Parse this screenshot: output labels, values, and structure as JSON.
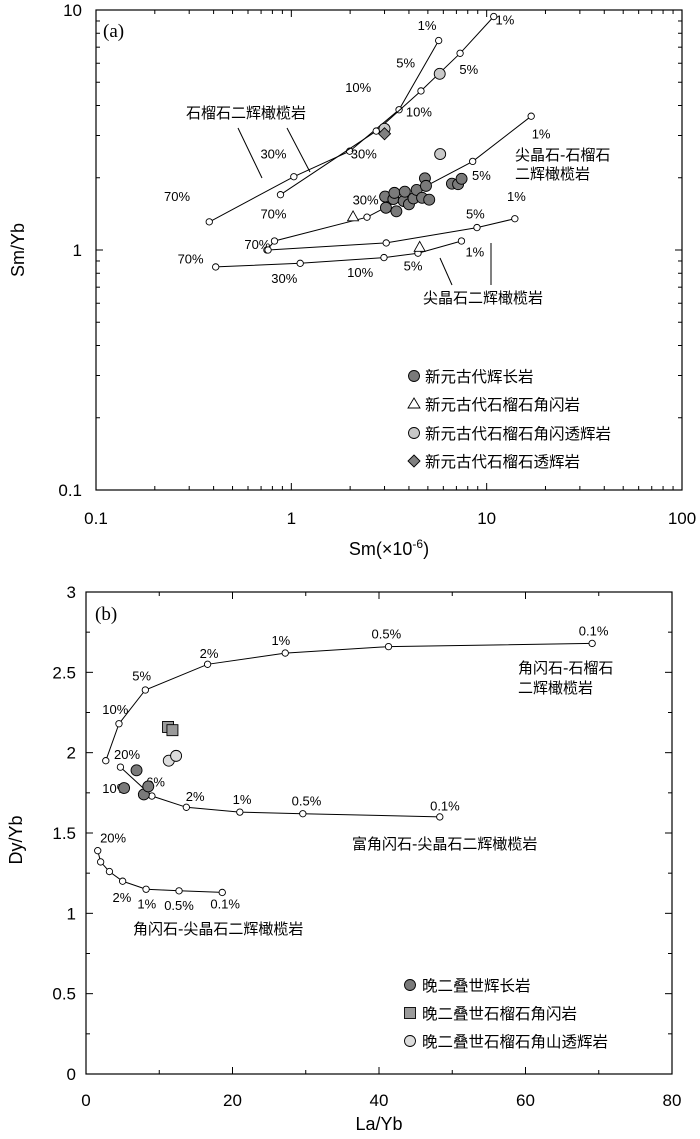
{
  "chart_data": [
    {
      "type": "scatter",
      "panel": "(a)",
      "xscale": "log",
      "yscale": "log",
      "xlim": [
        0.1,
        100
      ],
      "ylim": [
        0.1,
        10
      ],
      "xlabel": "Sm(×10⁻⁶)",
      "ylabel": "Sm/Yb",
      "xticks": [
        {
          "v": 0.1,
          "t": "0.1"
        },
        {
          "v": 1,
          "t": "1"
        },
        {
          "v": 10,
          "t": "10"
        },
        {
          "v": 100,
          "t": "100"
        }
      ],
      "yticks": [
        {
          "v": 0.1,
          "t": "0.1"
        },
        {
          "v": 1,
          "t": "1"
        },
        {
          "v": 10,
          "t": "10"
        }
      ],
      "curves": [
        {
          "name": "石榴石二辉橄榄岩 A",
          "points": [
            [
              0.38,
              1.31
            ],
            [
              1.03,
              2.02
            ],
            [
              1.99,
              2.58
            ],
            [
              3.56,
              3.84
            ],
            [
              5.68,
              7.46
            ]
          ],
          "labels": [
            {
              "t": "70%",
              "x": 0.26,
              "y": 1.6
            },
            {
              "t": "30%",
              "x": 0.81,
              "y": 2.4
            },
            {
              "t": "10%",
              "x": 2.2,
              "y": 4.55
            },
            {
              "t": "5%",
              "x": 3.85,
              "y": 5.75
            },
            {
              "t": "1%",
              "x": 4.95,
              "y": 8.25
            }
          ]
        },
        {
          "name": "石榴石二辉橄榄岩 B",
          "points": [
            [
              0.88,
              1.7
            ],
            [
              2.72,
              3.13
            ],
            [
              4.61,
              4.6
            ],
            [
              7.31,
              6.6
            ],
            [
              10.87,
              9.39
            ]
          ],
          "labels": [
            {
              "t": "70%",
              "x": 0.81,
              "y": 1.35
            },
            {
              "t": "30%",
              "x": 2.35,
              "y": 2.4
            },
            {
              "t": "10%",
              "x": 4.5,
              "y": 3.6
            },
            {
              "t": "5%",
              "x": 8.1,
              "y": 5.4
            },
            {
              "t": "1%",
              "x": 12.4,
              "y": 8.7
            }
          ]
        },
        {
          "name": "尖晶石-石榴石二辉橄榄岩",
          "points": [
            [
              0.75,
              1.0
            ],
            [
              0.82,
              1.09
            ],
            [
              2.44,
              1.37
            ],
            [
              8.48,
              2.34
            ],
            [
              16.9,
              3.61
            ]
          ],
          "labels": [
            {
              "t": "70%",
              "x": 0.67,
              "y": 1.01
            },
            {
              "t": "30%",
              "x": 2.4,
              "y": 1.55
            },
            {
              "t": "5%",
              "x": 9.4,
              "y": 1.96
            },
            {
              "t": "1%",
              "x": 19.0,
              "y": 2.92
            }
          ]
        },
        {
          "name": "尖晶石二辉橄榄岩 A",
          "points": [
            [
              0.76,
              1.0
            ],
            [
              3.06,
              1.07
            ],
            [
              8.92,
              1.24
            ],
            [
              13.94,
              1.35
            ]
          ],
          "labels": [
            {
              "t": "5%",
              "x": 8.75,
              "y": 1.35
            },
            {
              "t": "1%",
              "x": 14.2,
              "y": 1.6
            }
          ]
        },
        {
          "name": "尖晶石二辉橄榄岩 B",
          "points": [
            [
              0.41,
              0.85
            ],
            [
              1.11,
              0.88
            ],
            [
              2.98,
              0.93
            ],
            [
              4.45,
              0.97
            ],
            [
              7.43,
              1.09
            ]
          ],
          "labels": [
            {
              "t": "70%",
              "x": 0.305,
              "y": 0.88
            },
            {
              "t": "30%",
              "x": 0.92,
              "y": 0.73
            },
            {
              "t": "10%",
              "x": 2.25,
              "y": 0.77
            },
            {
              "t": "5%",
              "x": 4.2,
              "y": 0.82
            },
            {
              "t": "1%",
              "x": 8.7,
              "y": 0.94
            }
          ]
        }
      ],
      "series": [
        {
          "name": "新元古代辉长岩",
          "marker": "circle",
          "fill": "#7a7a7a",
          "points": [
            [
              3.02,
              1.67
            ],
            [
              3.05,
              1.5
            ],
            [
              3.33,
              1.63
            ],
            [
              3.37,
              1.73
            ],
            [
              3.45,
              1.45
            ],
            [
              3.76,
              1.6
            ],
            [
              3.81,
              1.75
            ],
            [
              4.0,
              1.55
            ],
            [
              4.22,
              1.64
            ],
            [
              4.38,
              1.78
            ],
            [
              4.67,
              1.65
            ],
            [
              4.83,
              1.99
            ],
            [
              4.89,
              1.85
            ],
            [
              5.08,
              1.62
            ],
            [
              6.64,
              1.89
            ],
            [
              7.14,
              1.88
            ],
            [
              7.44,
              1.98
            ]
          ]
        },
        {
          "name": "新元古代石榴石角闪岩",
          "marker": "triangle",
          "fill": "#ffffff",
          "points": [
            [
              2.07,
              1.38
            ],
            [
              4.54,
              1.03
            ]
          ]
        },
        {
          "name": "新元古代石榴石角闪透辉岩",
          "marker": "circle",
          "fill": "#c8c8c8",
          "points": [
            [
              3.0,
              3.2
            ],
            [
              5.75,
              5.42
            ],
            [
              5.78,
              2.51
            ]
          ]
        },
        {
          "name": "新元古代石榴石透辉岩",
          "marker": "diamond",
          "fill": "#808080",
          "points": [
            [
              3.0,
              3.05
            ]
          ]
        }
      ],
      "annotations": [
        "石榴石二辉橄榄岩",
        "尖晶石-石榴石",
        "二辉橄榄岩",
        "尖晶石二辉橄榄岩"
      ],
      "legend_position": "bottom-right"
    },
    {
      "type": "scatter",
      "panel": "(b)",
      "xlim": [
        0,
        80
      ],
      "ylim": [
        0,
        3
      ],
      "xlabel": "La/Yb",
      "ylabel": "Dy/Yb",
      "xticks": [
        {
          "v": 0,
          "t": "0"
        },
        {
          "v": 20,
          "t": "20"
        },
        {
          "v": 40,
          "t": "40"
        },
        {
          "v": 60,
          "t": "60"
        },
        {
          "v": 80,
          "t": "80"
        }
      ],
      "yticks": [
        {
          "v": 0,
          "t": "0"
        },
        {
          "v": 0.5,
          "t": "0.5"
        },
        {
          "v": 1,
          "t": "1"
        },
        {
          "v": 1.5,
          "t": "1.5"
        },
        {
          "v": 2,
          "t": "2"
        },
        {
          "v": 2.5,
          "t": "2.5"
        },
        {
          "v": 3,
          "t": "3"
        }
      ],
      "curves": [
        {
          "name": "角闪石-石榴石二辉橄榄岩",
          "points": [
            [
              2.7,
              1.95
            ],
            [
              4.5,
              2.18
            ],
            [
              8.1,
              2.39
            ],
            [
              16.6,
              2.55
            ],
            [
              27.2,
              2.62
            ],
            [
              41.3,
              2.66
            ],
            [
              69.1,
              2.68
            ]
          ],
          "labels": [
            {
              "t": "20%",
              "x": 5.6,
              "y": 1.96
            },
            {
              "t": "10%",
              "x": 4.0,
              "y": 2.24
            },
            {
              "t": "5%",
              "x": 7.6,
              "y": 2.45
            },
            {
              "t": "2%",
              "x": 16.8,
              "y": 2.59
            },
            {
              "t": "1%",
              "x": 26.6,
              "y": 2.67
            },
            {
              "t": "0.5%",
              "x": 41.0,
              "y": 2.71
            },
            {
              "t": "0.1%",
              "x": 69.3,
              "y": 2.73
            }
          ]
        },
        {
          "name": "富角闪石-尖晶石二辉橄榄岩",
          "points": [
            [
              4.7,
              1.91
            ],
            [
              9.0,
              1.73
            ],
            [
              13.7,
              1.66
            ],
            [
              21.0,
              1.63
            ],
            [
              29.6,
              1.62
            ],
            [
              48.3,
              1.6
            ]
          ],
          "labels": [
            {
              "t": "10%",
              "x": 4.0,
              "y": 1.75
            },
            {
              "t": "6%",
              "x": 9.5,
              "y": 1.79
            },
            {
              "t": "2%",
              "x": 14.9,
              "y": 1.7
            },
            {
              "t": "1%",
              "x": 21.3,
              "y": 1.68
            },
            {
              "t": "0.5%",
              "x": 30.1,
              "y": 1.67
            },
            {
              "t": "0.1%",
              "x": 49.0,
              "y": 1.64
            }
          ]
        },
        {
          "name": "角闪石-尖晶石二辉橄榄岩",
          "points": [
            [
              1.6,
              1.39
            ],
            [
              2.0,
              1.32
            ],
            [
              3.2,
              1.26
            ],
            [
              5.0,
              1.2
            ],
            [
              8.2,
              1.15
            ],
            [
              12.7,
              1.14
            ],
            [
              18.6,
              1.13
            ]
          ],
          "labels": [
            {
              "t": "20%",
              "x": 3.7,
              "y": 1.44
            },
            {
              "t": "2%",
              "x": 4.9,
              "y": 1.07
            },
            {
              "t": "1%",
              "x": 8.3,
              "y": 1.03
            },
            {
              "t": "0.5%",
              "x": 12.7,
              "y": 1.02
            },
            {
              "t": "0.1%",
              "x": 19.0,
              "y": 1.03
            }
          ]
        }
      ],
      "series": [
        {
          "name": "晚二叠世辉长岩",
          "marker": "circle",
          "fill": "#7a7a7a",
          "points": [
            [
              5.2,
              1.78
            ],
            [
              6.9,
              1.89
            ],
            [
              7.9,
              1.74
            ],
            [
              8.5,
              1.79
            ]
          ]
        },
        {
          "name": "晚二叠世石榴石角闪岩",
          "marker": "square",
          "fill": "#9a9a9a",
          "points": [
            [
              11.2,
              2.16
            ],
            [
              11.8,
              2.14
            ]
          ]
        },
        {
          "name": "晚二叠世石榴石角山透辉岩",
          "marker": "circle",
          "fill": "#dcdcdc",
          "points": [
            [
              11.3,
              1.95
            ],
            [
              12.3,
              1.98
            ]
          ]
        }
      ],
      "annotations": [
        "角闪石-石榴石",
        "二辉橄榄岩",
        "富角闪石-尖晶石二辉橄榄岩",
        "角闪石-尖晶石二辉橄榄岩"
      ],
      "legend_position": "bottom-right"
    }
  ]
}
